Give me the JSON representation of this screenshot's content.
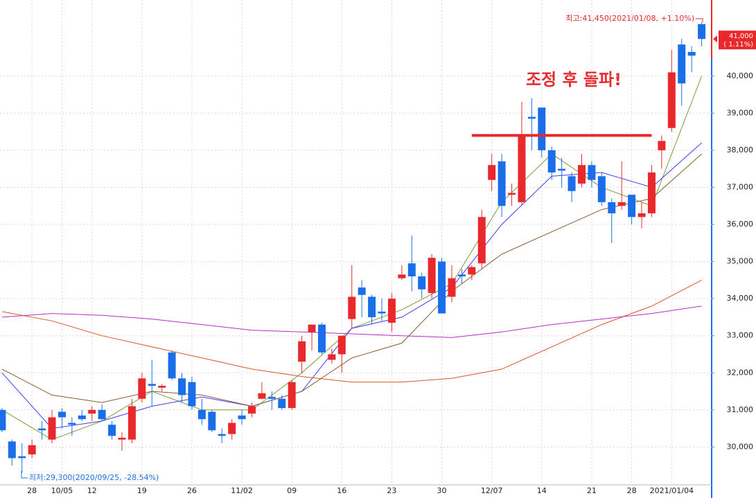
{
  "chart_data": {
    "type": "candlestick",
    "categories": [
      null,
      null,
      null,
      "28",
      null,
      null,
      "10/05",
      null,
      null,
      "12",
      null,
      null,
      null,
      null,
      "19",
      null,
      null,
      null,
      null,
      "26",
      null,
      null,
      null,
      null,
      "11/02",
      null,
      null,
      null,
      null,
      "09",
      null,
      null,
      null,
      null,
      "16",
      null,
      null,
      null,
      null,
      "23",
      null,
      null,
      null,
      null,
      "30",
      null,
      null,
      null,
      null,
      "12/07",
      null,
      null,
      null,
      null,
      "14",
      null,
      null,
      null,
      null,
      "21",
      null,
      null,
      null,
      "28",
      null,
      null,
      null,
      "2021/01/04",
      null,
      null,
      null
    ],
    "open": [
      31000,
      30150,
      29750,
      29800,
      30500,
      30200,
      30950,
      30650,
      30850,
      30900,
      31000,
      30600,
      30200,
      30200,
      31300,
      31700,
      31600,
      32550,
      31850,
      31750,
      31000,
      30950,
      30350,
      30350,
      30850,
      30900,
      31300,
      31350,
      31300,
      31050,
      32300,
      33100,
      33300,
      32350,
      32500,
      33450,
      34300,
      34050,
      33650,
      33350,
      34550,
      34950,
      34600,
      34150,
      35000,
      34050,
      34650,
      34650,
      34950,
      37200,
      37700,
      36800,
      36600,
      38900,
      39150,
      38000,
      37500,
      37300,
      37100,
      37600,
      37300,
      36600,
      36500,
      36800,
      36200,
      36300,
      38000,
      38600,
      40850,
      40650,
      41400
    ],
    "high": [
      31050,
      30200,
      30100,
      30200,
      30700,
      31000,
      31050,
      30800,
      31000,
      31100,
      31150,
      30700,
      30400,
      31300,
      32000,
      32350,
      31700,
      32600,
      32000,
      31900,
      31300,
      31000,
      30500,
      30750,
      31000,
      31200,
      31750,
      31500,
      31400,
      31800,
      33000,
      33300,
      33350,
      32650,
      33000,
      34900,
      34500,
      34100,
      34000,
      34150,
      34900,
      35700,
      34700,
      35200,
      35100,
      34900,
      34800,
      34900,
      36400,
      37900,
      37900,
      37100,
      39300,
      39400,
      39150,
      38100,
      37800,
      37400,
      37900,
      37700,
      37400,
      36700,
      37700,
      36800,
      36600,
      37600,
      38400,
      40700,
      41000,
      40800,
      41450
    ],
    "low": [
      30400,
      29500,
      29300,
      29700,
      30200,
      30100,
      30500,
      30300,
      30700,
      30700,
      30700,
      30200,
      29900,
      30100,
      31200,
      31100,
      31500,
      31800,
      31200,
      31000,
      30600,
      30400,
      30100,
      30200,
      30600,
      30800,
      31300,
      31000,
      31000,
      31000,
      32000,
      32600,
      32500,
      32250,
      32000,
      33200,
      33500,
      33300,
      33400,
      33100,
      34500,
      34200,
      34000,
      34000,
      33600,
      33900,
      34400,
      34500,
      34800,
      36900,
      36200,
      36500,
      36500,
      38000,
      37800,
      37200,
      37000,
      36600,
      37000,
      37000,
      36500,
      35500,
      36400,
      36000,
      35900,
      36200,
      37500,
      38500,
      39200,
      40100,
      40800
    ],
    "close": [
      30450,
      29700,
      29700,
      30050,
      30450,
      30800,
      30800,
      30600,
      30750,
      31000,
      30750,
      30300,
      30250,
      31100,
      31850,
      31650,
      31650,
      31850,
      31400,
      31100,
      30750,
      30450,
      30300,
      30650,
      30750,
      31100,
      31450,
      31300,
      31050,
      31750,
      32850,
      33300,
      32550,
      32500,
      33000,
      34050,
      34100,
      33500,
      33600,
      34000,
      34650,
      34600,
      34250,
      35100,
      33600,
      34550,
      34600,
      34850,
      36200,
      37600,
      36500,
      36850,
      38400,
      38850,
      38000,
      37400,
      37450,
      36900,
      37600,
      37200,
      36600,
      36300,
      36600,
      36200,
      36300,
      37400,
      38250,
      40100,
      39800,
      40550,
      41000
    ],
    "up_color": "#e8282b",
    "down_color": "#1a6fe8",
    "lines": [
      {
        "color": "#7a9a3a",
        "x": [
          0,
          5,
          10,
          15,
          20,
          25,
          30,
          35,
          40,
          45,
          50,
          55,
          60,
          65,
          70
        ],
        "values": [
          31000,
          30200,
          30700,
          31500,
          31000,
          31000,
          32000,
          33200,
          33700,
          34400,
          36600,
          37900,
          37000,
          36500,
          40000
        ]
      },
      {
        "color": "#3b3bff",
        "x": [
          0,
          5,
          10,
          15,
          20,
          25,
          30,
          35,
          40,
          45,
          50,
          55,
          60,
          65,
          70
        ],
        "values": [
          32000,
          30500,
          30700,
          31100,
          31350,
          31100,
          31500,
          33200,
          33500,
          34300,
          36000,
          37300,
          37400,
          37000,
          38200
        ]
      },
      {
        "color": "#8b5a2b",
        "x": [
          0,
          5,
          10,
          15,
          20,
          25,
          30,
          35,
          40,
          45,
          50,
          55,
          60,
          65,
          70
        ],
        "values": [
          32100,
          31400,
          31200,
          31500,
          31400,
          31100,
          31500,
          32400,
          32800,
          34200,
          35200,
          35800,
          36400,
          36700,
          37900
        ]
      },
      {
        "color": "#e0502a",
        "x": [
          0,
          5,
          10,
          15,
          20,
          25,
          30,
          35,
          40,
          45,
          50,
          55,
          60,
          65,
          70
        ],
        "values": [
          33650,
          33400,
          33000,
          32700,
          32400,
          32100,
          31900,
          31750,
          31750,
          31850,
          32100,
          32700,
          33300,
          33800,
          34500
        ]
      },
      {
        "color": "#b030c0",
        "x": [
          0,
          5,
          10,
          15,
          20,
          25,
          30,
          35,
          40,
          45,
          50,
          55,
          60,
          65,
          70
        ],
        "values": [
          33500,
          33600,
          33550,
          33450,
          33300,
          33150,
          33100,
          33050,
          33000,
          32950,
          33100,
          33300,
          33450,
          33600,
          33800
        ]
      }
    ],
    "xlim": [
      -0.2,
      71
    ],
    "ylim": [
      28980,
      42050
    ],
    "yticks": [
      {
        "value": 30000,
        "label": "30,000"
      },
      {
        "value": 31000,
        "label": "31,000"
      },
      {
        "value": 32000,
        "label": "32,000"
      },
      {
        "value": 33000,
        "label": "33,000"
      },
      {
        "value": 34000,
        "label": "34,000"
      },
      {
        "value": 35000,
        "label": "35,000"
      },
      {
        "value": 36000,
        "label": "36,000"
      },
      {
        "value": 37000,
        "label": "37,000"
      },
      {
        "value": 38000,
        "label": "38,000"
      },
      {
        "value": 39000,
        "label": "39,000"
      },
      {
        "value": 40000,
        "label": "40,000"
      }
    ],
    "grid": true,
    "high_annotation": "최고:41,450(2021/01/08, +1.10%)",
    "low_annotation": "최저:29,300(2020/09/25, -28.54%)",
    "headline": "조정 후 돌파!",
    "breakout_level": {
      "value": 38400,
      "from": 47,
      "to": 65,
      "color": "#e8282b"
    },
    "price_tag": {
      "value": 41000,
      "label": "41,000",
      "change": "( 1.11%)"
    }
  }
}
